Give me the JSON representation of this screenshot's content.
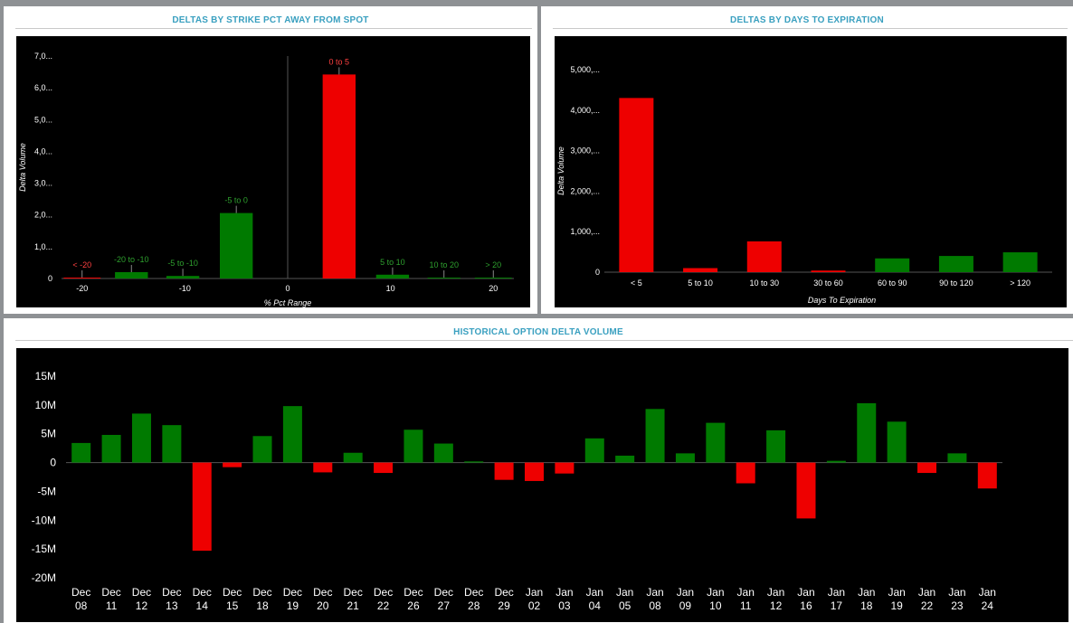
{
  "panels": {
    "strike": {
      "title": "DELTAS BY STRIKE PCT AWAY FROM SPOT"
    },
    "days": {
      "title": "DELTAS BY DAYS TO EXPIRATION"
    },
    "history": {
      "title": "HISTORICAL OPTION DELTA VOLUME"
    }
  },
  "colors": {
    "positive": "#007a00",
    "negative": "#ee0000",
    "panel_title": "#3aa0c0",
    "background": "#000000"
  },
  "chart_data": [
    {
      "id": "strike",
      "type": "bar",
      "title": "DELTAS BY STRIKE PCT AWAY FROM SPOT",
      "xlabel": "% Pct Range",
      "ylabel": "Delta Volume",
      "xlim": [
        -22,
        22
      ],
      "ylim": [
        0,
        7000
      ],
      "x_ticks": [
        -20,
        -10,
        0,
        10,
        20
      ],
      "y_tick_labels": [
        "0",
        "1,0...",
        "2,0...",
        "3,0...",
        "4,0...",
        "5,0...",
        "6,0...",
        "7,0..."
      ],
      "bars": [
        {
          "label": "< -20",
          "x0": -21.8,
          "x1": -18.2,
          "value": 15,
          "color": "negative"
        },
        {
          "label": "-20 to -10",
          "x0": -16.8,
          "x1": -13.6,
          "value": 200,
          "color": "positive"
        },
        {
          "label": "-5 to -10",
          "x0": -11.8,
          "x1": -8.6,
          "value": 80,
          "color": "positive"
        },
        {
          "label": "-5 to 0",
          "x0": -6.6,
          "x1": -3.4,
          "value": 2060,
          "color": "positive"
        },
        {
          "label": "0 to 5",
          "x0": 3.4,
          "x1": 6.6,
          "value": 6420,
          "color": "negative"
        },
        {
          "label": "5 to 10",
          "x0": 8.6,
          "x1": 11.8,
          "value": 120,
          "color": "positive"
        },
        {
          "label": "10 to 20",
          "x0": 13.6,
          "x1": 16.8,
          "value": 25,
          "color": "positive"
        },
        {
          "label": "> 20",
          "x0": 18.2,
          "x1": 21.8,
          "value": 15,
          "color": "positive"
        }
      ]
    },
    {
      "id": "days",
      "type": "bar",
      "title": "DELTAS BY DAYS TO EXPIRATION",
      "xlabel": "Days To Expiration",
      "ylabel": "Delta Volume",
      "ylim": [
        0,
        5000
      ],
      "categories": [
        "< 5",
        "5 to 10",
        "10 to 30",
        "30 to 60",
        "60 to 90",
        "90 to 120",
        "> 120"
      ],
      "values": [
        4300,
        100,
        760,
        40,
        340,
        400,
        490
      ],
      "signs": [
        "negative",
        "negative",
        "negative",
        "negative",
        "positive",
        "positive",
        "positive"
      ],
      "y_tick_labels": [
        "0",
        "1,000,...",
        "2,000,...",
        "3,000,...",
        "4,000,...",
        "5,000,..."
      ]
    },
    {
      "id": "history",
      "type": "bar",
      "title": "HISTORICAL OPTION DELTA VOLUME",
      "xlabel": "",
      "ylabel": "",
      "ylim": [
        -20,
        15
      ],
      "y_tick_labels": [
        "15M",
        "10M",
        "5M",
        "0",
        "-5M",
        "-10M",
        "-15M",
        "-20M"
      ],
      "categories": [
        [
          "Dec",
          "08"
        ],
        [
          "Dec",
          "11"
        ],
        [
          "Dec",
          "12"
        ],
        [
          "Dec",
          "13"
        ],
        [
          "Dec",
          "14"
        ],
        [
          "Dec",
          "15"
        ],
        [
          "Dec",
          "18"
        ],
        [
          "Dec",
          "19"
        ],
        [
          "Dec",
          "20"
        ],
        [
          "Dec",
          "21"
        ],
        [
          "Dec",
          "22"
        ],
        [
          "Dec",
          "26"
        ],
        [
          "Dec",
          "27"
        ],
        [
          "Dec",
          "28"
        ],
        [
          "Dec",
          "29"
        ],
        [
          "Jan",
          "02"
        ],
        [
          "Jan",
          "03"
        ],
        [
          "Jan",
          "04"
        ],
        [
          "Jan",
          "05"
        ],
        [
          "Jan",
          "08"
        ],
        [
          "Jan",
          "09"
        ],
        [
          "Jan",
          "10"
        ],
        [
          "Jan",
          "11"
        ],
        [
          "Jan",
          "12"
        ],
        [
          "Jan",
          "16"
        ],
        [
          "Jan",
          "17"
        ],
        [
          "Jan",
          "18"
        ],
        [
          "Jan",
          "19"
        ],
        [
          "Jan",
          "22"
        ],
        [
          "Jan",
          "23"
        ],
        [
          "Jan",
          "24"
        ]
      ],
      "values": [
        3.4,
        4.8,
        8.5,
        6.5,
        -15.3,
        -0.8,
        4.6,
        9.8,
        -1.7,
        1.7,
        -1.8,
        5.7,
        3.3,
        0.2,
        -3.0,
        -3.2,
        -1.9,
        4.2,
        1.2,
        9.3,
        1.6,
        6.9,
        -3.6,
        5.6,
        -9.7,
        0.3,
        10.3,
        7.1,
        -1.8,
        1.6,
        -4.5
      ]
    }
  ]
}
